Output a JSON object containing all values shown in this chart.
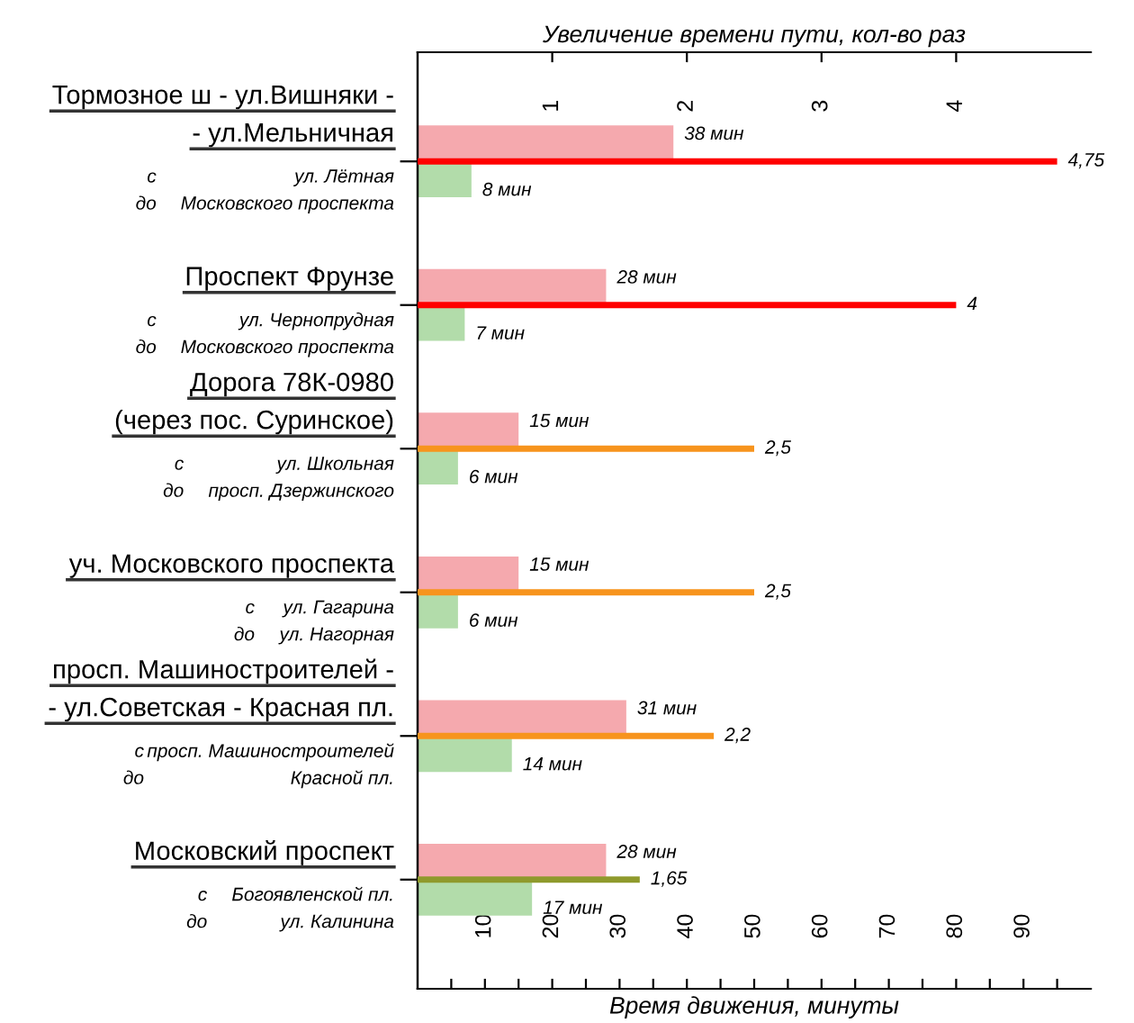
{
  "chart_data": {
    "type": "bar",
    "orientation": "horizontal",
    "xlabel": "Время движения, минуты",
    "x2label": "Увеличение времени пути, кол-во раз",
    "categories": [
      "Тормозное ш - ул.Вишняки -\n- ул.Мельничная",
      "Проспект Фрунзе",
      "Дорога 78К-0980\n(через пос. Суринское)",
      "уч. Московского проспекта",
      "просп. Машиностроителей -\n- ул.Советская - Красная пл.",
      "Московский проспект"
    ],
    "annotations": [
      "с",
      "ул. Лётная",
      "до",
      "Московского проспекта",
      "с",
      "ул. Чернопрудная",
      "до",
      "Московского проспекта",
      "с",
      "ул. Школьная",
      "до",
      "просп. Дзержинского",
      "с",
      "ул. Гагарина",
      "до",
      "ул. Нагорная",
      "с",
      "просп. Машиностроителей",
      "до",
      "Красной пл.",
      "с",
      "Богоявленской пл.",
      "до",
      "ул. Калинина"
    ],
    "xlim": [
      0,
      100
    ],
    "xticks": [
      {
        "value": 5,
        "label": null
      },
      10,
      {
        "value": 15,
        "label": null
      },
      20,
      {
        "value": 25,
        "label": null
      },
      30,
      {
        "value": 35,
        "label": null
      },
      40,
      {
        "value": 45,
        "label": null
      },
      50,
      {
        "value": 55,
        "label": null
      },
      60,
      {
        "value": 65,
        "label": null
      },
      70,
      {
        "value": 75,
        "label": null
      },
      80,
      {
        "value": 85,
        "label": null
      },
      90,
      {
        "value": 95,
        "label": null
      }
    ],
    "x2lim": [
      0,
      5
    ],
    "x2ticks": [
      1,
      2,
      3,
      4
    ],
    "series": [
      {
        "color": "#f5a9ae",
        "values": [
          38,
          28,
          15,
          15,
          31,
          28
        ],
        "value_labels": [
          "38 мин",
          "28 мин",
          "15 мин",
          "15 мин",
          "31 мин",
          "28 мин"
        ]
      },
      {
        "color": "#b2dcaa",
        "values": [
          8,
          7,
          6,
          6,
          14,
          17
        ],
        "value_labels": [
          "8 мин",
          "7 мин",
          "6 мин",
          "6 мин",
          "14 мин",
          "17 мин"
        ]
      },
      {
        "axis": "x2",
        "colors": [
          "#ff0000",
          "#ff0000",
          "#f7941d",
          "#f7941d",
          "#f7941d",
          "#8f9a2c"
        ],
        "values": [
          4.75,
          4,
          2.5,
          2.5,
          2.2,
          1.65
        ],
        "value_labels": [
          "4,75",
          "4",
          "2,5",
          "2,5",
          "2,2",
          "1,65"
        ]
      }
    ]
  }
}
